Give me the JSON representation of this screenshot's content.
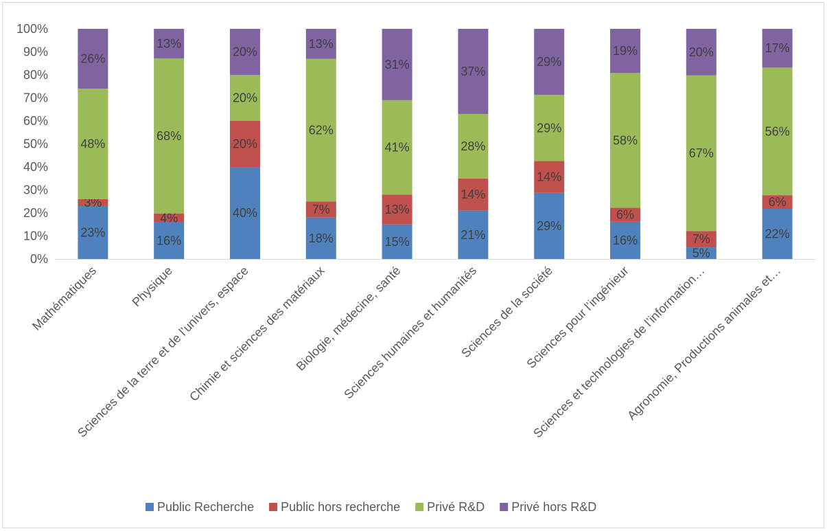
{
  "chart_data": {
    "type": "bar",
    "stacked": "percent",
    "title": "",
    "xlabel": "",
    "ylabel": "",
    "ylim": [
      0,
      100
    ],
    "y_ticks": [
      "0%",
      "10%",
      "20%",
      "30%",
      "40%",
      "50%",
      "60%",
      "70%",
      "80%",
      "90%",
      "100%"
    ],
    "grid": false,
    "legend_position": "bottom",
    "categories": [
      "Mathématiques",
      "Physique",
      "Sciences de la terre et de l’univers, espace",
      "Chimie et sciences des matériaux",
      "Biologie, médecine, santé",
      "Sciences humaines et humanités",
      "Sciences de la société",
      "Sciences pour l’ingénieur",
      "Sciences et technologies de l’information…",
      "Agronomie, Productions animales et…"
    ],
    "series": [
      {
        "name": "Public Recherche",
        "color": "#4F81BD",
        "values": [
          23,
          16,
          40,
          18,
          15,
          21,
          29,
          16,
          5,
          22
        ],
        "labels": [
          "23%",
          "16%",
          "40%",
          "18%",
          "15%",
          "21%",
          "29%",
          "16%",
          "5%",
          "22%"
        ]
      },
      {
        "name": "Public hors recherche",
        "color": "#C0504D",
        "values": [
          3,
          4,
          20,
          7,
          13,
          14,
          14,
          6,
          7,
          6
        ],
        "labels": [
          "3%",
          "4%",
          "20%",
          "7%",
          "13%",
          "14%",
          "14%",
          "6%",
          "7%",
          "6%"
        ]
      },
      {
        "name": "Privé R&D",
        "color": "#9BBB59",
        "values": [
          48,
          68,
          20,
          62,
          41,
          28,
          29,
          58,
          67,
          56
        ],
        "labels": [
          "48%",
          "68%",
          "20%",
          "62%",
          "41%",
          "28%",
          "29%",
          "58%",
          "67%",
          "56%"
        ]
      },
      {
        "name": "Privé hors R&D",
        "color": "#8064A2",
        "values": [
          26,
          13,
          20,
          13,
          31,
          37,
          29,
          19,
          20,
          17
        ],
        "labels": [
          "26%",
          "13%",
          "20%",
          "13%",
          "31%",
          "37%",
          "29%",
          "19%",
          "20%",
          "17%"
        ]
      }
    ]
  }
}
